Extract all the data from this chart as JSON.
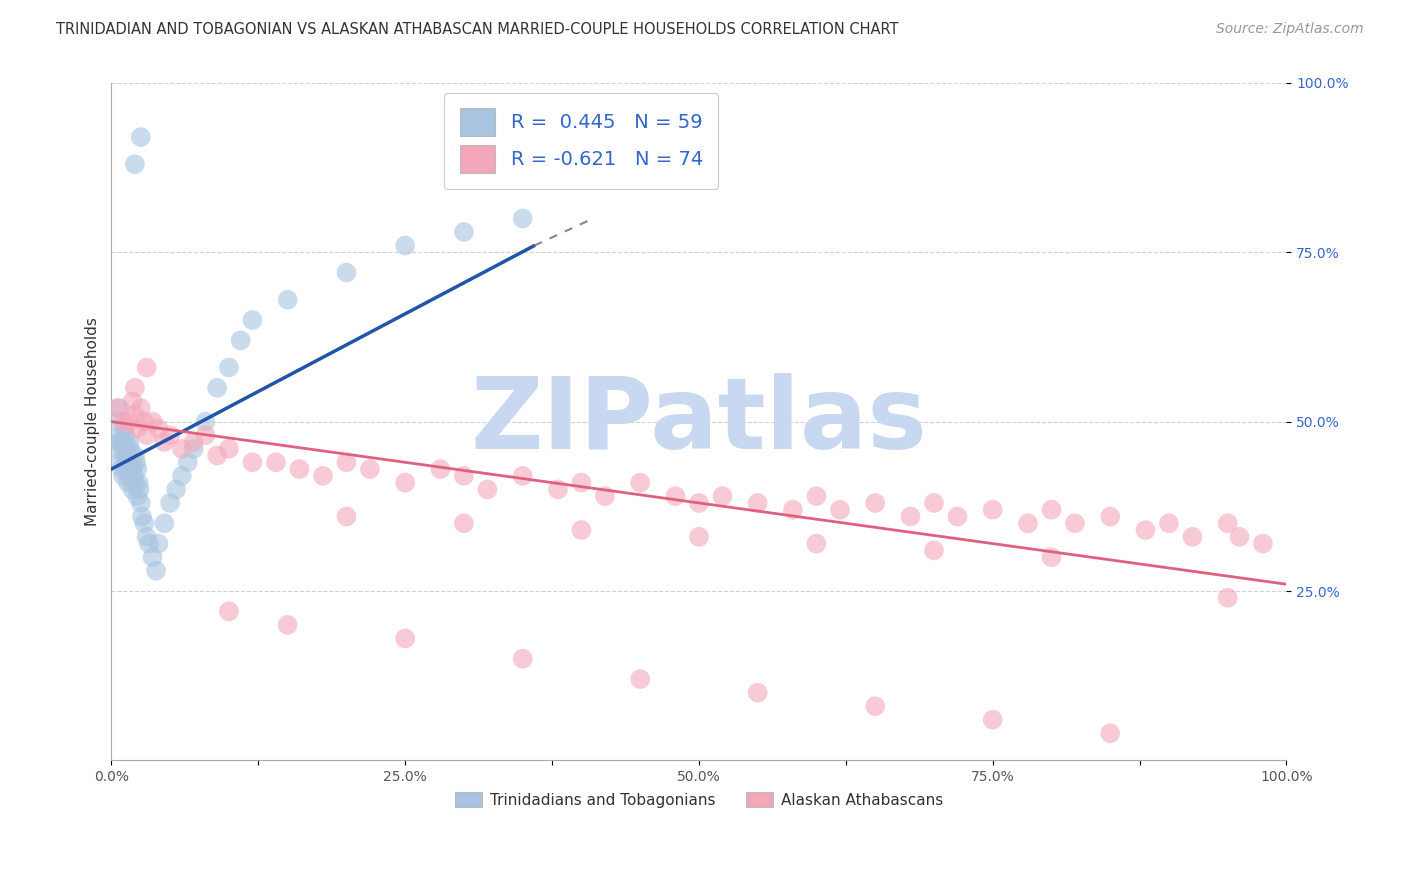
{
  "title": "TRINIDADIAN AND TOBAGONIAN VS ALASKAN ATHABASCAN MARRIED-COUPLE HOUSEHOLDS CORRELATION CHART",
  "source": "Source: ZipAtlas.com",
  "ylabel": "Married-couple Households",
  "watermark": "ZIPatlas",
  "xlim": [
    0.0,
    1.0
  ],
  "ylim": [
    0.0,
    1.0
  ],
  "xtick_labels": [
    "0.0%",
    "",
    "25.0%",
    "",
    "50.0%",
    "",
    "75.0%",
    "",
    "100.0%"
  ],
  "xtick_vals": [
    0.0,
    0.125,
    0.25,
    0.375,
    0.5,
    0.625,
    0.75,
    0.875,
    1.0
  ],
  "ytick_labels": [
    "25.0%",
    "50.0%",
    "75.0%",
    "100.0%"
  ],
  "ytick_vals": [
    0.25,
    0.5,
    0.75,
    1.0
  ],
  "blue_R": 0.445,
  "blue_N": 59,
  "pink_R": -0.621,
  "pink_N": 74,
  "blue_color": "#a8c4e0",
  "pink_color": "#f4a7b9",
  "blue_line_color": "#2255aa",
  "pink_line_color": "#e06080",
  "legend_R_color": "#3366cc",
  "title_fontsize": 10.5,
  "source_fontsize": 10,
  "axis_label_fontsize": 11,
  "tick_fontsize": 10,
  "watermark_color": "#c8d8f0",
  "watermark_fontsize": 72,
  "blue_line_x0": 0.0,
  "blue_line_y0": 0.43,
  "blue_line_x1": 0.36,
  "blue_line_y1": 0.76,
  "blue_line_dash_x1": 0.41,
  "blue_line_dash_y1": 0.8,
  "pink_line_x0": 0.0,
  "pink_line_y0": 0.5,
  "pink_line_x1": 1.0,
  "pink_line_y1": 0.26,
  "blue_scatter_x": [
    0.005,
    0.005,
    0.007,
    0.007,
    0.008,
    0.008,
    0.009,
    0.009,
    0.01,
    0.01,
    0.011,
    0.011,
    0.012,
    0.012,
    0.013,
    0.013,
    0.014,
    0.014,
    0.015,
    0.015,
    0.016,
    0.016,
    0.017,
    0.018,
    0.018,
    0.019,
    0.02,
    0.02,
    0.021,
    0.022,
    0.022,
    0.023,
    0.024,
    0.025,
    0.026,
    0.028,
    0.03,
    0.032,
    0.035,
    0.038,
    0.04,
    0.045,
    0.05,
    0.055,
    0.06,
    0.065,
    0.07,
    0.08,
    0.09,
    0.1,
    0.11,
    0.12,
    0.15,
    0.2,
    0.25,
    0.3,
    0.35,
    0.02,
    0.025
  ],
  "blue_scatter_y": [
    0.5,
    0.46,
    0.52,
    0.47,
    0.48,
    0.44,
    0.47,
    0.43,
    0.46,
    0.42,
    0.49,
    0.45,
    0.48,
    0.44,
    0.46,
    0.43,
    0.45,
    0.41,
    0.47,
    0.43,
    0.46,
    0.42,
    0.44,
    0.43,
    0.4,
    0.42,
    0.45,
    0.41,
    0.44,
    0.43,
    0.39,
    0.41,
    0.4,
    0.38,
    0.36,
    0.35,
    0.33,
    0.32,
    0.3,
    0.28,
    0.32,
    0.35,
    0.38,
    0.4,
    0.42,
    0.44,
    0.46,
    0.5,
    0.55,
    0.58,
    0.62,
    0.65,
    0.68,
    0.72,
    0.76,
    0.78,
    0.8,
    0.88,
    0.92
  ],
  "pink_scatter_x": [
    0.005,
    0.01,
    0.015,
    0.018,
    0.02,
    0.022,
    0.025,
    0.028,
    0.03,
    0.035,
    0.04,
    0.045,
    0.05,
    0.06,
    0.07,
    0.08,
    0.09,
    0.1,
    0.12,
    0.14,
    0.16,
    0.18,
    0.2,
    0.22,
    0.25,
    0.28,
    0.3,
    0.32,
    0.35,
    0.38,
    0.4,
    0.42,
    0.45,
    0.48,
    0.5,
    0.52,
    0.55,
    0.58,
    0.6,
    0.62,
    0.65,
    0.68,
    0.7,
    0.72,
    0.75,
    0.78,
    0.8,
    0.82,
    0.85,
    0.88,
    0.9,
    0.92,
    0.95,
    0.96,
    0.98,
    0.2,
    0.3,
    0.4,
    0.5,
    0.6,
    0.7,
    0.8,
    0.1,
    0.15,
    0.25,
    0.35,
    0.45,
    0.55,
    0.65,
    0.75,
    0.85,
    0.95,
    0.02,
    0.03
  ],
  "pink_scatter_y": [
    0.52,
    0.5,
    0.5,
    0.53,
    0.51,
    0.49,
    0.52,
    0.5,
    0.48,
    0.5,
    0.49,
    0.47,
    0.48,
    0.46,
    0.47,
    0.48,
    0.45,
    0.46,
    0.44,
    0.44,
    0.43,
    0.42,
    0.44,
    0.43,
    0.41,
    0.43,
    0.42,
    0.4,
    0.42,
    0.4,
    0.41,
    0.39,
    0.41,
    0.39,
    0.38,
    0.39,
    0.38,
    0.37,
    0.39,
    0.37,
    0.38,
    0.36,
    0.38,
    0.36,
    0.37,
    0.35,
    0.37,
    0.35,
    0.36,
    0.34,
    0.35,
    0.33,
    0.35,
    0.33,
    0.32,
    0.36,
    0.35,
    0.34,
    0.33,
    0.32,
    0.31,
    0.3,
    0.22,
    0.2,
    0.18,
    0.15,
    0.12,
    0.1,
    0.08,
    0.06,
    0.04,
    0.24,
    0.55,
    0.58
  ]
}
